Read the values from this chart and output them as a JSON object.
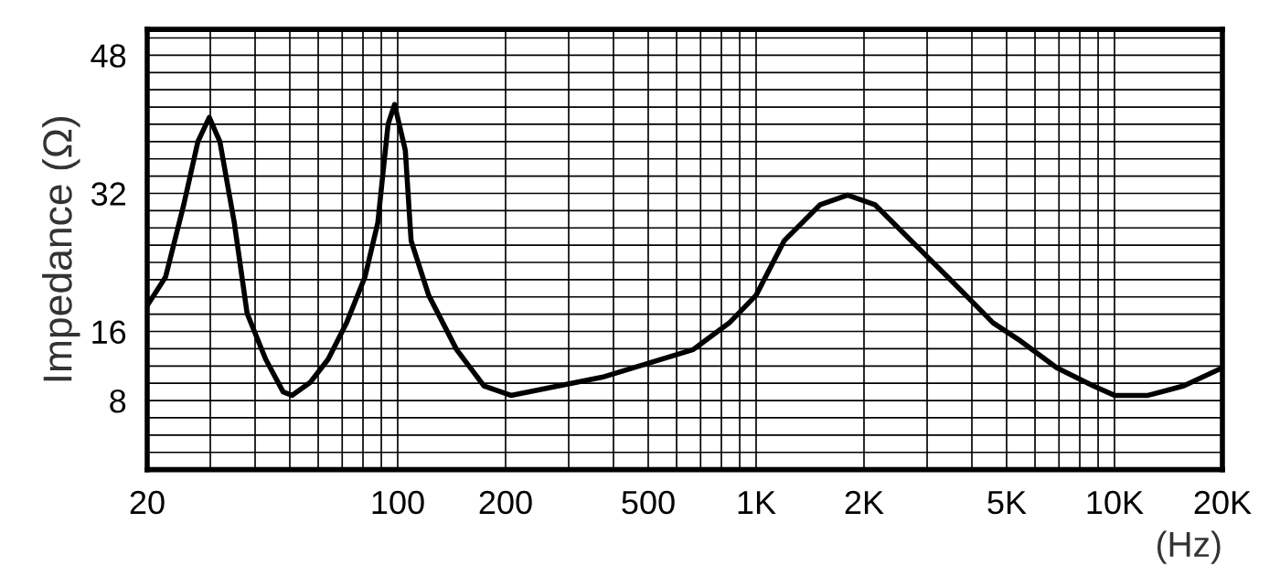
{
  "chart_data": {
    "type": "line",
    "xlabel": "(Hz)",
    "ylabel": "Impedance (Ω)",
    "log": "x",
    "grid": true,
    "marker": "none",
    "line_style": "solid",
    "xlim": [
      20,
      20000
    ],
    "ylim": [
      0,
      51
    ],
    "xticks": [
      20,
      {
        "value": 30,
        "label": null
      },
      {
        "value": 40,
        "label": null
      },
      {
        "value": 50,
        "label": null
      },
      {
        "value": 60,
        "label": null
      },
      {
        "value": 70,
        "label": null
      },
      {
        "value": 80,
        "label": null
      },
      {
        "value": 90,
        "label": null
      },
      100,
      200,
      {
        "value": 300,
        "label": null
      },
      {
        "value": 400,
        "label": null
      },
      500,
      {
        "value": 600,
        "label": null
      },
      {
        "value": 700,
        "label": null
      },
      {
        "value": 800,
        "label": null
      },
      {
        "value": 900,
        "label": null
      },
      {
        "value": 1000,
        "label": "1K"
      },
      {
        "value": 2000,
        "label": "2K"
      },
      {
        "value": 3000,
        "label": null
      },
      {
        "value": 4000,
        "label": null
      },
      {
        "value": 5000,
        "label": "5K"
      },
      {
        "value": 6000,
        "label": null
      },
      {
        "value": 7000,
        "label": null
      },
      {
        "value": 8000,
        "label": null
      },
      {
        "value": 9000,
        "label": null
      },
      {
        "value": 10000,
        "label": "10K"
      },
      {
        "value": 20000,
        "label": "20K"
      }
    ],
    "yticks": [
      {
        "value": 2,
        "label": null
      },
      {
        "value": 4,
        "label": null
      },
      {
        "value": 6,
        "label": null
      },
      8,
      {
        "value": 10,
        "label": null
      },
      {
        "value": 12,
        "label": null
      },
      {
        "value": 14,
        "label": null
      },
      16,
      {
        "value": 18,
        "label": null
      },
      {
        "value": 20,
        "label": null
      },
      {
        "value": 22,
        "label": null
      },
      {
        "value": 24,
        "label": null
      },
      {
        "value": 26,
        "label": null
      },
      {
        "value": 28,
        "label": null
      },
      {
        "value": 30,
        "label": null
      },
      32,
      {
        "value": 34,
        "label": null
      },
      {
        "value": 36,
        "label": null
      },
      {
        "value": 38,
        "label": null
      },
      {
        "value": 40,
        "label": null
      },
      {
        "value": 42,
        "label": null
      },
      {
        "value": 44,
        "label": null
      },
      {
        "value": 46,
        "label": null
      },
      48,
      {
        "value": 50,
        "label": null
      }
    ],
    "series": [
      {
        "color": "#000000",
        "x": [
          20,
          22.5,
          25.3,
          27.7,
          29.8,
          31.9,
          35,
          38,
          42.8,
          47.9,
          50.7,
          57,
          64,
          72,
          81,
          88,
          94,
          98,
          105,
          109,
          122,
          146,
          174,
          207,
          372,
          667,
          842,
          1000,
          1197,
          1510,
          1800,
          2144,
          3426,
          4584,
          5470,
          6900,
          8720,
          10000,
          12400,
          15600,
          20000
        ],
        "values": [
          19,
          22.3,
          30.7,
          38,
          40.8,
          38,
          28.6,
          18.1,
          12.8,
          9,
          8.6,
          10.1,
          12.8,
          17,
          22.3,
          28.6,
          40,
          42.3,
          37,
          26.5,
          20.2,
          13.9,
          9.7,
          8.6,
          10.7,
          13.9,
          17,
          20.2,
          26.5,
          30.7,
          31.8,
          30.7,
          22.3,
          17,
          14.9,
          11.8,
          9.7,
          8.6,
          8.6,
          9.7,
          11.8
        ]
      }
    ]
  }
}
